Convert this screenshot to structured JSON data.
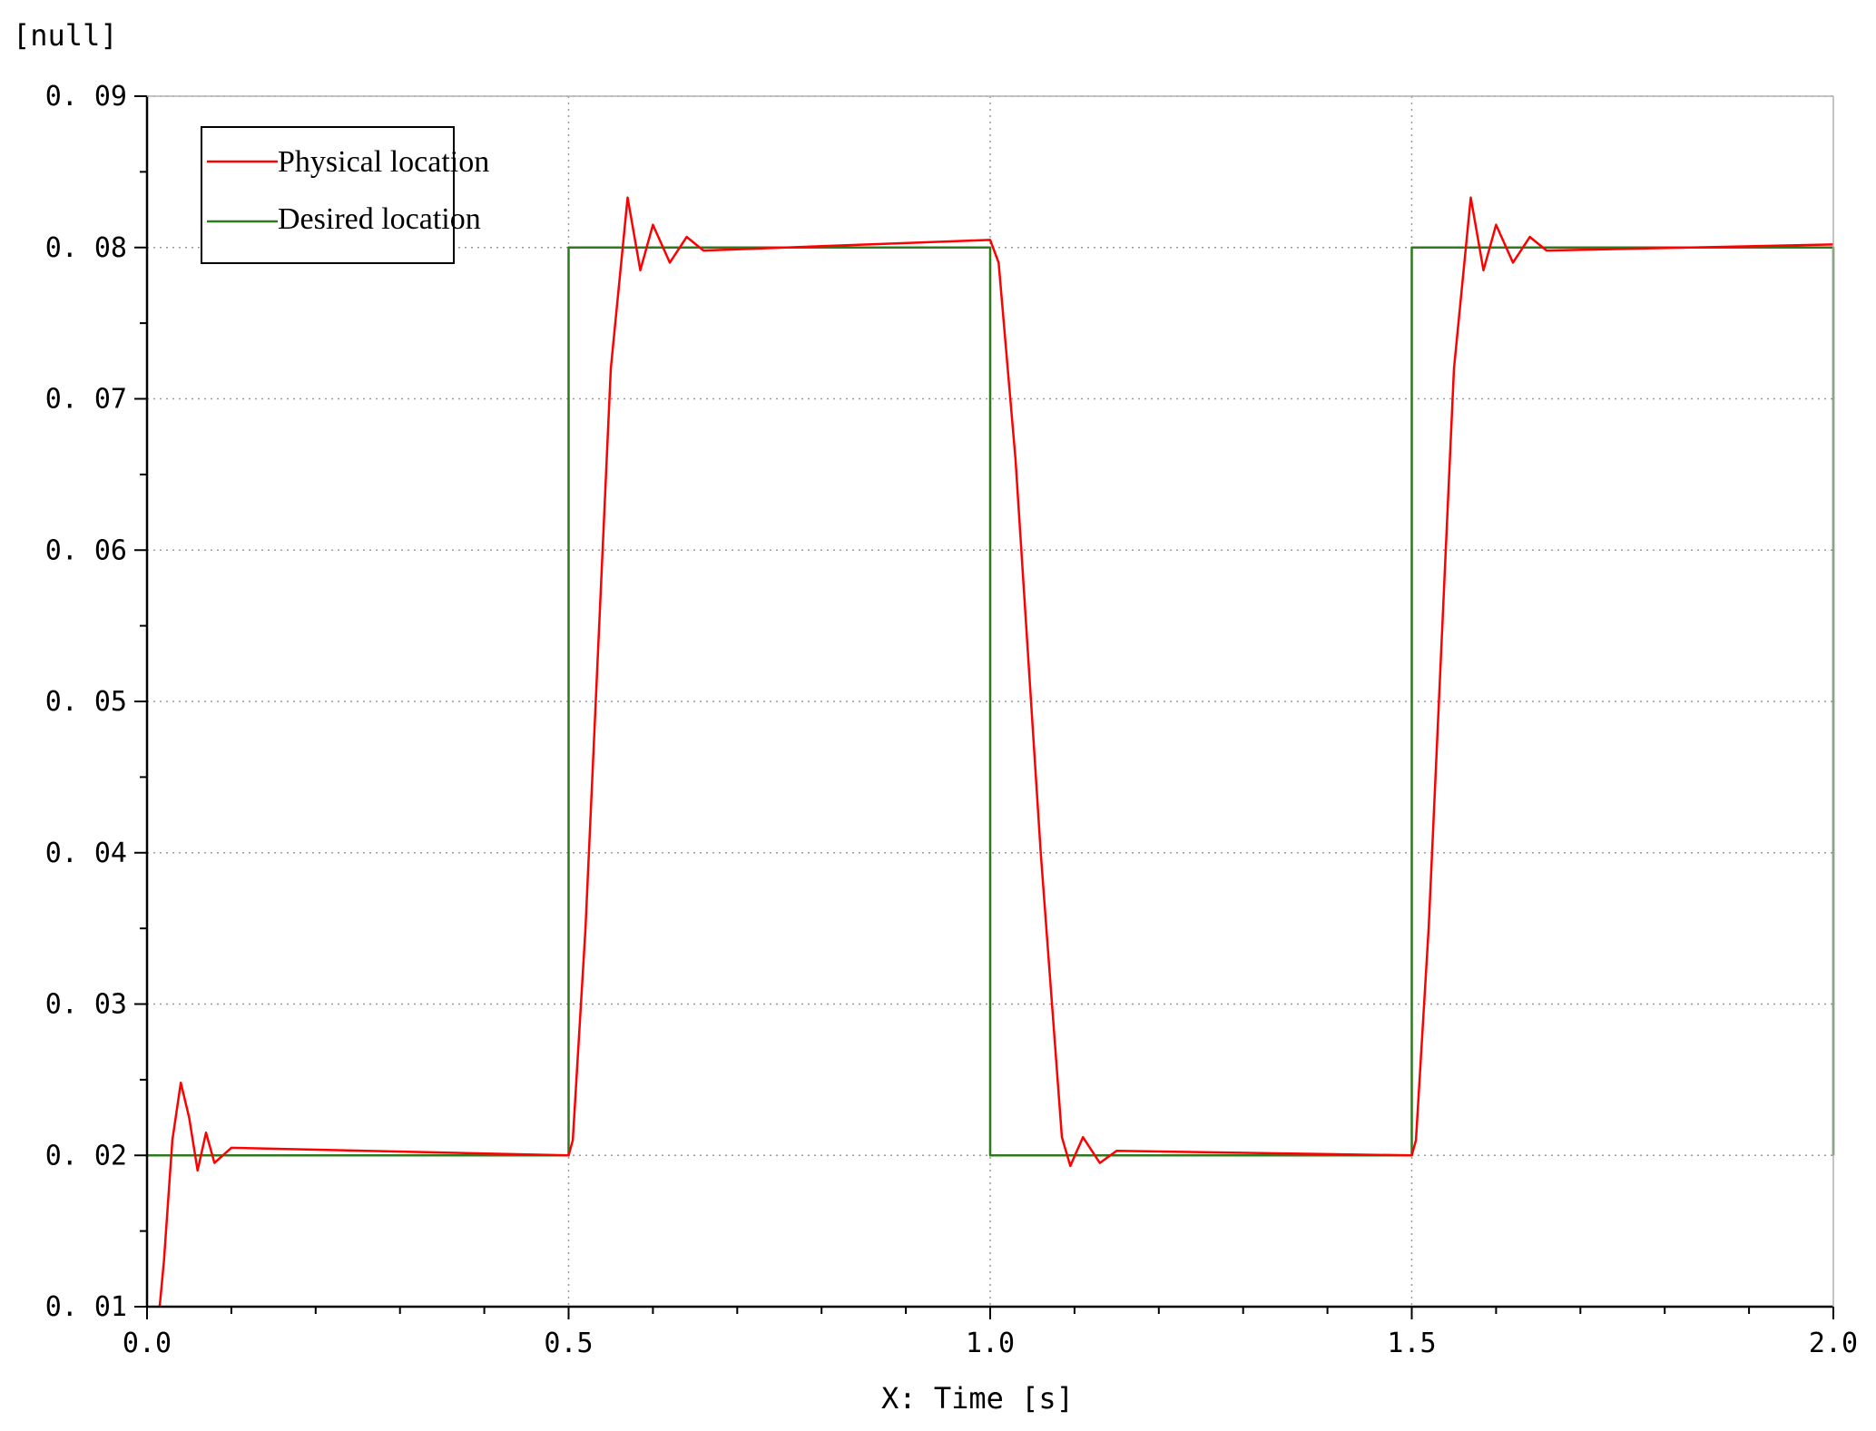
{
  "chart_data": {
    "type": "line",
    "y_unit_label": "[null]",
    "xlabel": "X: Time [s]",
    "ylabel": "",
    "xlim": [
      0.0,
      2.0
    ],
    "ylim": [
      0.01,
      0.09
    ],
    "x_ticks": [
      "0.0",
      "0.5",
      "1.0",
      "1.5",
      "2.0"
    ],
    "y_ticks": [
      "0.01",
      "0.02",
      "0.03",
      "0.04",
      "0.05",
      "0.06",
      "0.07",
      "0.08",
      "0.09"
    ],
    "grid": true,
    "legend_position": "top-left",
    "series": [
      {
        "name": "Physical location",
        "color": "#ff0000",
        "x": [
          0.015,
          0.02,
          0.03,
          0.04,
          0.05,
          0.06,
          0.07,
          0.08,
          0.1,
          0.5,
          0.505,
          0.52,
          0.55,
          0.57,
          0.585,
          0.6,
          0.62,
          0.64,
          0.66,
          1.0,
          1.01,
          1.03,
          1.06,
          1.085,
          1.095,
          1.11,
          1.13,
          1.15,
          1.5,
          1.505,
          1.52,
          1.55,
          1.57,
          1.585,
          1.6,
          1.62,
          1.64,
          1.66,
          2.0
        ],
        "y": [
          0.01,
          0.013,
          0.021,
          0.0248,
          0.0225,
          0.019,
          0.0215,
          0.0195,
          0.0205,
          0.02,
          0.021,
          0.035,
          0.072,
          0.0833,
          0.0785,
          0.0815,
          0.079,
          0.0807,
          0.0798,
          0.0805,
          0.079,
          0.066,
          0.04,
          0.0212,
          0.0193,
          0.0212,
          0.0195,
          0.0203,
          0.02,
          0.021,
          0.035,
          0.072,
          0.0833,
          0.0785,
          0.0815,
          0.079,
          0.0807,
          0.0798,
          0.0802
        ]
      },
      {
        "name": "Desired location",
        "color": "#2f7a1e",
        "x": [
          0.0,
          0.5,
          0.5,
          1.0,
          1.0,
          1.5,
          1.5,
          2.0,
          2.0
        ],
        "y": [
          0.02,
          0.02,
          0.08,
          0.08,
          0.02,
          0.02,
          0.08,
          0.08,
          0.02
        ]
      }
    ]
  }
}
